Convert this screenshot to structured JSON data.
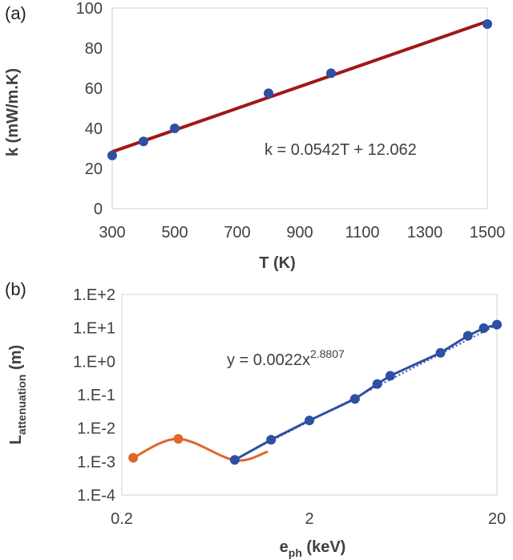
{
  "chart_data": [
    {
      "panel": "(a)",
      "type": "scatter",
      "xlabel": "T  (K)",
      "ylabel": "k  (mW/m.K)",
      "xlim": [
        300,
        1500
      ],
      "ylim": [
        0,
        100
      ],
      "xticks": [
        300,
        500,
        700,
        900,
        1100,
        1300,
        1500
      ],
      "yticks": [
        0,
        20,
        40,
        60,
        80,
        100
      ],
      "grid": false,
      "series": [
        {
          "type": "scatter",
          "color": "#2e4fa3",
          "x": [
            300,
            400,
            500,
            800,
            1000,
            1500
          ],
          "y": [
            26.5,
            33.5,
            40,
            57.5,
            67.5,
            92
          ]
        },
        {
          "type": "line",
          "color": "#a01818",
          "slope": 0.0542,
          "intercept": 12.062,
          "x_range": [
            300,
            1500
          ]
        }
      ],
      "annotation": "k = 0.0542T + 12.062"
    },
    {
      "panel": "(b)",
      "type": "line",
      "xscale": "log",
      "yscale": "log",
      "xlabel_main": "e",
      "xlabel_sub": "ph",
      "xlabel_unit": " (keV)",
      "ylabel_main": "L",
      "ylabel_sub": "attenuation",
      "ylabel_unit": " (m)",
      "xlim": [
        0.2,
        20
      ],
      "ylim": [
        0.0001,
        100
      ],
      "xticks": [
        0.2,
        2,
        20
      ],
      "xtick_labels": [
        "0.2",
        "2",
        "20"
      ],
      "yticks": [
        0.0001,
        0.001,
        0.01,
        0.1,
        1,
        10,
        100
      ],
      "ytick_labels": [
        "1.E-4",
        "1.E-3",
        "1.E-2",
        "1.E-1",
        "1.E+0",
        "1.E+1",
        "1.E+2"
      ],
      "grid": false,
      "series": [
        {
          "color": "#e0662a",
          "smooth": true,
          "x": [
            0.23,
            0.4,
            0.8,
            1.2
          ],
          "y": [
            0.0013,
            0.0048,
            0.0011,
            0.002
          ]
        },
        {
          "color": "#2e4fa3",
          "x": [
            0.8,
            1.25,
            2,
            3.5,
            4.6,
            5.4,
            10,
            14,
            17,
            20
          ],
          "y": [
            0.00112,
            0.0045,
            0.017,
            0.075,
            0.21,
            0.37,
            1.8,
            5.8,
            9.8,
            12.5
          ]
        },
        {
          "type": "trendline",
          "color": "#2e4fa3",
          "coef": 0.0022,
          "exponent": 2.8807,
          "x_range": [
            0.8,
            20
          ]
        }
      ],
      "annotation": {
        "base": "y = 0.0022x",
        "sup": "2.8807"
      }
    }
  ]
}
